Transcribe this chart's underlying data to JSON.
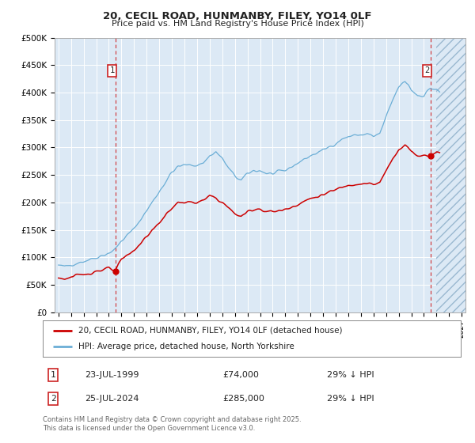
{
  "title": "20, CECIL ROAD, HUNMANBY, FILEY, YO14 0LF",
  "subtitle": "Price paid vs. HM Land Registry's House Price Index (HPI)",
  "ylim": [
    0,
    500000
  ],
  "xlim_start": 1994.7,
  "xlim_end": 2027.3,
  "hatch_start": 2025.0,
  "marker1_x": 1999.55,
  "marker2_x": 2024.55,
  "sale1_x": 1999.55,
  "sale1_y": 74000,
  "sale2_x": 2024.55,
  "sale2_y": 285000,
  "bg_color": "#dce9f5",
  "hpi_color": "#6baed6",
  "price_color": "#cc0000",
  "grid_color": "#ffffff",
  "legend_label_price": "20, CECIL ROAD, HUNMANBY, FILEY, YO14 0LF (detached house)",
  "legend_label_hpi": "HPI: Average price, detached house, North Yorkshire",
  "footer": "Contains HM Land Registry data © Crown copyright and database right 2025.\nThis data is licensed under the Open Government Licence v3.0."
}
